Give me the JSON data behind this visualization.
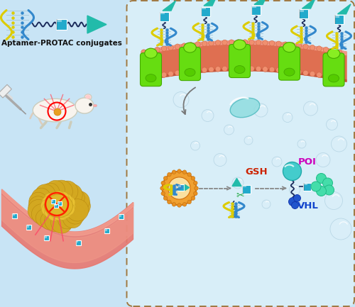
{
  "bg_color": "#c8e4f5",
  "panel_bg": "#d8eef8",
  "dashed_box_color": "#a07840",
  "title_text": "Aptamer-PROTAC conjugates",
  "title_fontsize": 7.5,
  "title_color": "#111111",
  "label_GSH": "GSH",
  "label_POI": "POI",
  "label_VHL": "VHL",
  "label_GSH_color": "#cc2200",
  "label_POI_color": "#cc00bb",
  "label_VHL_color": "#1144cc",
  "membrane_color": "#e06848",
  "membrane_highlight": "#f09080",
  "aptamer_color": "#88cc44",
  "protac_linker_color": "#1a2a5a",
  "protac_cube_color": "#22aacc",
  "arrow_color": "#22bbaa",
  "nanoparticle_shell": "#e89030",
  "scissors_color": "#22aa44",
  "tumor_color": "#d4a820",
  "blood_vessel_color": "#e87060",
  "mouse_color": "#f8f4ee",
  "dna_yellow": "#ddcc00",
  "dna_blue": "#3388cc",
  "green_protein": "#66dd11",
  "green_protein_dark": "#44aa00",
  "bubble_color": "#e0f0fa",
  "teal_endo": "#80d8d8",
  "bead_color": "#44ddaa"
}
